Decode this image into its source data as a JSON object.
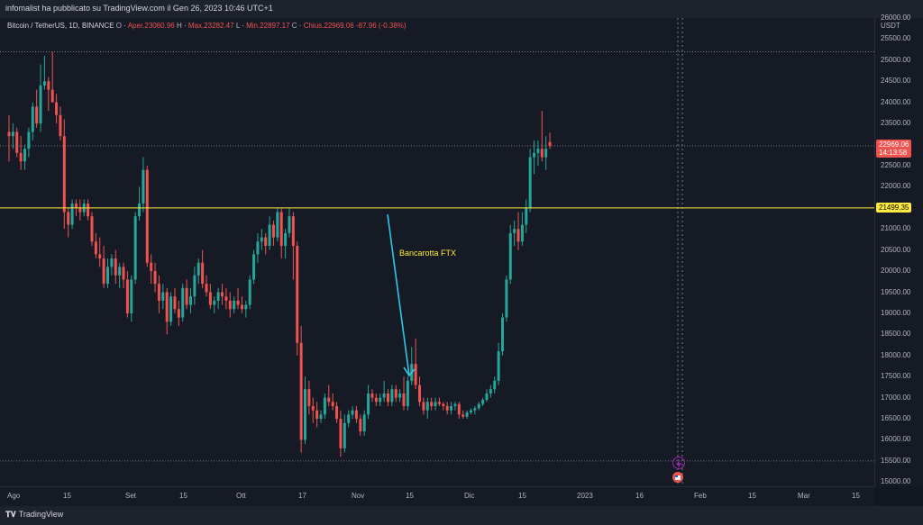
{
  "header": {
    "publisher_text": "infomalist ha pubblicato su TradingView.com il Gen 26, 2023 10:46 UTC+1"
  },
  "legend": {
    "symbol": "Bitcoin / TetherUS, 1D, BINANCE",
    "open_label": "O",
    "open": "Aper.23060.96",
    "high_label": "H",
    "high": "Max.23282.47",
    "low_label": "L",
    "low": "Min.22897.17",
    "close_label": "C",
    "close": "Chius.22969.06",
    "change": "-87.96 (-0.38%)"
  },
  "price_axis": {
    "unit": "USDT",
    "ticks": [
      "26000.00",
      "25500.00",
      "25000.00",
      "24500.00",
      "24000.00",
      "23500.00",
      "23000.00",
      "22500.00",
      "22000.00",
      "21500.00",
      "21000.00",
      "20500.00",
      "20000.00",
      "19500.00",
      "19000.00",
      "18500.00",
      "18000.00",
      "17500.00",
      "17000.00",
      "16500.00",
      "16000.00",
      "15500.00",
      "15000.00"
    ],
    "current_price": "22969.06",
    "countdown": "14:13:58",
    "level_price": "21499.35"
  },
  "time_axis": {
    "labels": [
      "Ago",
      "15",
      "Set",
      "15",
      "Ott",
      "17",
      "Nov",
      "15",
      "Dic",
      "15",
      "2023",
      "16",
      "Feb",
      "15",
      "Mar",
      "15"
    ]
  },
  "annotation": {
    "text": "Bancarotta FTX"
  },
  "colors": {
    "up": "#26a69a",
    "down": "#ef5350",
    "level": "#ffeb3b",
    "arrow": "#2ec8e8"
  },
  "footer": {
    "logo_text": "TradingView",
    "logo_icon": "tradingview-logo-icon"
  },
  "chart_data": {
    "type": "candlestick",
    "title": "Bitcoin / TetherUS, 1D, BINANCE",
    "ylabel": "USDT",
    "ylim": [
      14900,
      26000
    ],
    "horizontal_levels": [
      21499.35
    ],
    "annotations": [
      {
        "text": "Bancarotta FTX"
      }
    ],
    "series": [
      {
        "name": "BTCUSDT",
        "ohlc": [
          [
            23300,
            23700,
            22600,
            23200
          ],
          [
            23200,
            23500,
            22900,
            23300
          ],
          [
            23300,
            23400,
            22700,
            22800
          ],
          [
            22800,
            23200,
            22400,
            22600
          ],
          [
            22600,
            23000,
            22400,
            22900
          ],
          [
            22900,
            23400,
            22700,
            23300
          ],
          [
            23300,
            24000,
            23100,
            23900
          ],
          [
            23900,
            24300,
            23400,
            23500
          ],
          [
            23500,
            24900,
            23300,
            24400
          ],
          [
            24400,
            25100,
            24300,
            24500
          ],
          [
            24500,
            24600,
            23800,
            24300
          ],
          [
            24300,
            25200,
            24100,
            24000
          ],
          [
            24000,
            24200,
            23500,
            23700
          ],
          [
            23700,
            23900,
            23100,
            23200
          ],
          [
            23200,
            23600,
            21000,
            21400
          ],
          [
            21400,
            21500,
            20800,
            21100
          ],
          [
            21100,
            21700,
            21000,
            21600
          ],
          [
            21600,
            21700,
            21300,
            21500
          ],
          [
            21500,
            21700,
            21200,
            21400
          ],
          [
            21400,
            21700,
            21300,
            21600
          ],
          [
            21600,
            21700,
            21200,
            21300
          ],
          [
            21300,
            21400,
            20600,
            20700
          ],
          [
            20700,
            20900,
            20300,
            20400
          ],
          [
            20400,
            20800,
            20100,
            20300
          ],
          [
            20300,
            20600,
            19600,
            19700
          ],
          [
            19700,
            20300,
            19600,
            20100
          ],
          [
            20100,
            20400,
            19900,
            20300
          ],
          [
            20300,
            20500,
            19700,
            19900
          ],
          [
            19900,
            20200,
            19600,
            20100
          ],
          [
            20100,
            20200,
            19600,
            19800
          ],
          [
            19800,
            20000,
            18900,
            19000
          ],
          [
            19000,
            19900,
            18800,
            19800
          ],
          [
            19800,
            21400,
            19700,
            21300
          ],
          [
            21300,
            22000,
            21200,
            21600
          ],
          [
            21600,
            22700,
            21400,
            22400
          ],
          [
            22400,
            22500,
            20100,
            20200
          ],
          [
            20200,
            20400,
            19700,
            20000
          ],
          [
            20000,
            20200,
            19500,
            19700
          ],
          [
            19700,
            19900,
            19000,
            19300
          ],
          [
            19300,
            19700,
            19100,
            19500
          ],
          [
            19500,
            19600,
            18500,
            18800
          ],
          [
            18800,
            19500,
            18700,
            19400
          ],
          [
            19400,
            19600,
            19000,
            19100
          ],
          [
            19100,
            19300,
            18700,
            18900
          ],
          [
            18900,
            19700,
            18800,
            19600
          ],
          [
            19600,
            19800,
            19100,
            19200
          ],
          [
            19200,
            19600,
            19000,
            19400
          ],
          [
            19400,
            20100,
            19200,
            19900
          ],
          [
            19900,
            20300,
            19700,
            20200
          ],
          [
            20200,
            20500,
            19600,
            19700
          ],
          [
            19700,
            19900,
            19400,
            19500
          ],
          [
            19500,
            19700,
            19100,
            19200
          ],
          [
            19200,
            19400,
            19000,
            19300
          ],
          [
            19300,
            19600,
            19100,
            19500
          ],
          [
            19500,
            19700,
            19200,
            19400
          ],
          [
            19400,
            19600,
            19100,
            19300
          ],
          [
            19300,
            19500,
            18900,
            19100
          ],
          [
            19100,
            19400,
            19000,
            19300
          ],
          [
            19300,
            19600,
            19100,
            19200
          ],
          [
            19200,
            19400,
            19000,
            19100
          ],
          [
            19100,
            19300,
            18900,
            19200
          ],
          [
            19200,
            19900,
            19100,
            19800
          ],
          [
            19800,
            20500,
            19700,
            20400
          ],
          [
            20400,
            20900,
            20200,
            20700
          ],
          [
            20700,
            21000,
            20500,
            20800
          ],
          [
            20800,
            20900,
            20400,
            20600
          ],
          [
            20600,
            21300,
            20500,
            21100
          ],
          [
            21100,
            21200,
            20600,
            20800
          ],
          [
            20800,
            21500,
            20700,
            21400
          ],
          [
            21400,
            21500,
            20300,
            20600
          ],
          [
            20600,
            21000,
            20300,
            20900
          ],
          [
            20900,
            21500,
            20800,
            21300
          ],
          [
            21300,
            21400,
            19800,
            20600
          ],
          [
            20600,
            20700,
            18000,
            18300
          ],
          [
            18300,
            18700,
            15700,
            16000
          ],
          [
            16000,
            17500,
            15900,
            17200
          ],
          [
            17200,
            17400,
            16600,
            16800
          ],
          [
            16800,
            17000,
            16400,
            16700
          ],
          [
            16700,
            16900,
            16300,
            16500
          ],
          [
            16500,
            16700,
            16400,
            16600
          ],
          [
            16600,
            17100,
            16500,
            17000
          ],
          [
            17000,
            17300,
            16800,
            16900
          ],
          [
            16900,
            17100,
            16700,
            16800
          ],
          [
            16800,
            16900,
            16400,
            16500
          ],
          [
            16500,
            16700,
            15600,
            15800
          ],
          [
            15800,
            16600,
            15700,
            16400
          ],
          [
            16400,
            16700,
            16300,
            16600
          ],
          [
            16600,
            16800,
            16500,
            16700
          ],
          [
            16700,
            16800,
            16400,
            16500
          ],
          [
            16500,
            16600,
            16100,
            16200
          ],
          [
            16200,
            16700,
            16100,
            16600
          ],
          [
            16600,
            17300,
            16500,
            17100
          ],
          [
            17100,
            17200,
            16900,
            17000
          ],
          [
            17000,
            17100,
            16800,
            16900
          ],
          [
            16900,
            17100,
            16800,
            17000
          ],
          [
            17000,
            17400,
            16900,
            17100
          ],
          [
            17100,
            17200,
            16800,
            16900
          ],
          [
            16900,
            17300,
            16800,
            17200
          ],
          [
            17200,
            17300,
            16900,
            17000
          ],
          [
            17000,
            17200,
            16900,
            17100
          ],
          [
            17100,
            17500,
            16700,
            16800
          ],
          [
            16800,
            17500,
            16700,
            17400
          ],
          [
            17400,
            18200,
            17300,
            17800
          ],
          [
            17800,
            18400,
            17200,
            17300
          ],
          [
            17300,
            17500,
            16800,
            16900
          ],
          [
            16900,
            17000,
            16600,
            16700
          ],
          [
            16700,
            17000,
            16500,
            16900
          ],
          [
            16900,
            17000,
            16700,
            16800
          ],
          [
            16800,
            17000,
            16700,
            16900
          ],
          [
            16900,
            17000,
            16800,
            16850
          ],
          [
            16850,
            16900,
            16700,
            16800
          ],
          [
            16800,
            16900,
            16600,
            16700
          ],
          [
            16700,
            16900,
            16600,
            16800
          ],
          [
            16800,
            16900,
            16700,
            16850
          ],
          [
            16850,
            16900,
            16500,
            16600
          ],
          [
            16600,
            16700,
            16500,
            16550
          ],
          [
            16550,
            16700,
            16500,
            16650
          ],
          [
            16650,
            16750,
            16600,
            16700
          ],
          [
            16700,
            16800,
            16600,
            16750
          ],
          [
            16750,
            16900,
            16700,
            16850
          ],
          [
            16850,
            17000,
            16800,
            16950
          ],
          [
            16950,
            17200,
            16900,
            17100
          ],
          [
            17100,
            17300,
            17000,
            17200
          ],
          [
            17200,
            17500,
            17100,
            17400
          ],
          [
            17400,
            18300,
            17300,
            18100
          ],
          [
            18100,
            19000,
            18000,
            18900
          ],
          [
            18900,
            19900,
            18800,
            19800
          ],
          [
            19800,
            21100,
            19700,
            20900
          ],
          [
            20900,
            21200,
            20600,
            21000
          ],
          [
            21000,
            21400,
            20500,
            20700
          ],
          [
            20700,
            21400,
            20600,
            21100
          ],
          [
            21100,
            21700,
            20900,
            21500
          ],
          [
            21500,
            22900,
            21400,
            22700
          ],
          [
            22700,
            23100,
            22300,
            22800
          ],
          [
            22800,
            23100,
            22500,
            22900
          ],
          [
            22900,
            23800,
            22600,
            22700
          ],
          [
            22700,
            23200,
            22400,
            22900
          ],
          [
            23060.96,
            23282.47,
            22897.17,
            22969.06
          ]
        ]
      }
    ]
  }
}
